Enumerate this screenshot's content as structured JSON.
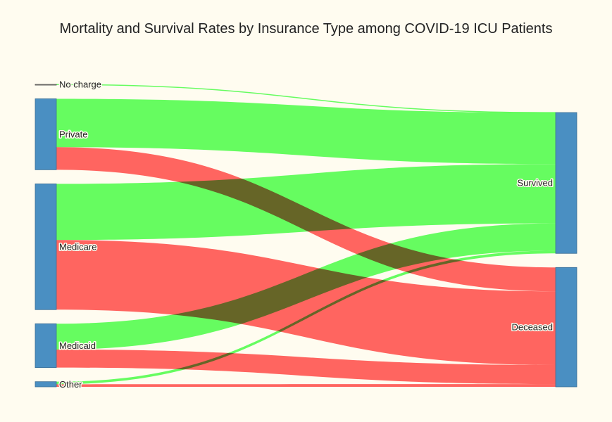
{
  "colors": {
    "background": "#fffcf0",
    "node": "#4a8fc2",
    "survived_link": "#66ff66",
    "deceased_link": "#ff6666"
  },
  "chart_data": {
    "type": "sankey",
    "title": "Mortality and Survival Rates by Insurance Type among COVID-19 ICU Patients",
    "sources": [
      "No charge",
      "Private",
      "Medicare",
      "Medicaid",
      "Other"
    ],
    "targets": [
      "Survived",
      "Deceased"
    ],
    "links": [
      {
        "source": "No charge",
        "target": "Survived",
        "value": 0.5
      },
      {
        "source": "Private",
        "target": "Survived",
        "value": 75
      },
      {
        "source": "Private",
        "target": "Deceased",
        "value": 35
      },
      {
        "source": "Medicare",
        "target": "Survived",
        "value": 87
      },
      {
        "source": "Medicare",
        "target": "Deceased",
        "value": 108
      },
      {
        "source": "Medicaid",
        "target": "Survived",
        "value": 40
      },
      {
        "source": "Medicaid",
        "target": "Deceased",
        "value": 28
      },
      {
        "source": "Other",
        "target": "Survived",
        "value": 4
      },
      {
        "source": "Other",
        "target": "Deceased",
        "value": 4
      }
    ]
  }
}
